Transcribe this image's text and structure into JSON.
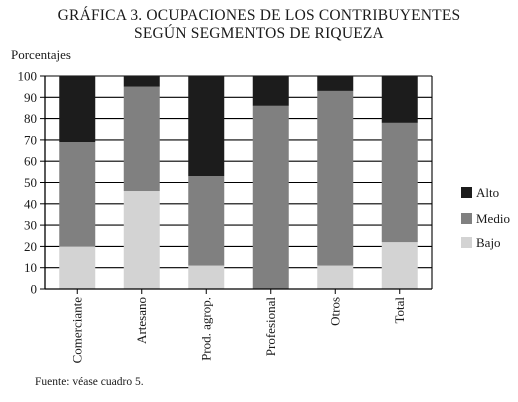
{
  "chart_data": {
    "type": "bar",
    "stacked": true,
    "title": "GRÁFICA 3. OCUPACIONES DE LOS CONTRIBUYENTES",
    "subtitle": "SEGÚN SEGMENTOS DE RIQUEZA",
    "ylabel": "Porcentajes",
    "xlabel": "",
    "ylim": [
      0,
      100
    ],
    "yticks": [
      0,
      10,
      20,
      30,
      40,
      50,
      60,
      70,
      80,
      90,
      100
    ],
    "grid": true,
    "legend_position": "right",
    "categories": [
      "Comerciante",
      "Artesano",
      "Prod. agrop.",
      "Profesional",
      "Otros",
      "Total"
    ],
    "series": [
      {
        "name": "Bajo",
        "color": "#d3d3d3",
        "values": [
          20,
          46,
          11,
          0,
          11,
          22
        ]
      },
      {
        "name": "Medio",
        "color": "#808080",
        "values": [
          49,
          49,
          42,
          86,
          82,
          56
        ]
      },
      {
        "name": "Alto",
        "color": "#1c1c1c",
        "values": [
          31,
          5,
          47,
          14,
          7,
          22
        ]
      }
    ],
    "legend_order": [
      "Alto",
      "Medio",
      "Bajo"
    ],
    "source": "Fuente: véase cuadro 5."
  }
}
